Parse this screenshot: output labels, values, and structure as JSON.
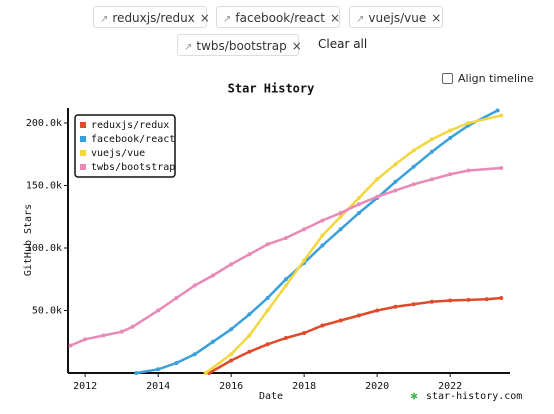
{
  "chips": [
    {
      "label": "reduxjs/redux"
    },
    {
      "label": "facebook/react"
    },
    {
      "label": "vuejs/vue"
    },
    {
      "label": "twbs/bootstrap"
    }
  ],
  "clear_all": "Clear all",
  "align_timeline": "Align timeline",
  "watermark": "star-history.com",
  "chart_data": {
    "type": "line",
    "title": "Star History",
    "x_label": "Date",
    "y_label": "GitHub Stars",
    "xlim": [
      2011.53,
      2023.64
    ],
    "ylim": [
      0,
      212000
    ],
    "xticks": [
      2012,
      2014,
      2016,
      2018,
      2020,
      2022
    ],
    "yticks": [
      {
        "value": 50000,
        "label": "50.0k"
      },
      {
        "value": 100000,
        "label": "100.0k"
      },
      {
        "value": 150000,
        "label": "150.0k"
      },
      {
        "value": 200000,
        "label": "200.0k"
      }
    ],
    "legend": "top-left",
    "series": [
      {
        "name": "reduxjs/redux",
        "color": "#dd4b2a",
        "x": [
          2015.4,
          2016,
          2016.5,
          2017,
          2017.5,
          2018,
          2018.5,
          2019,
          2019.5,
          2020,
          2020.5,
          2021,
          2021.5,
          2022,
          2022.5,
          2023,
          2023.4
        ],
        "values": [
          0,
          10000,
          17000,
          23000,
          28000,
          32000,
          38000,
          42000,
          46000,
          50000,
          53000,
          55000,
          57000,
          58000,
          58500,
          59000,
          60000
        ]
      },
      {
        "name": "facebook/react",
        "color": "#3aa0db",
        "x": [
          2013.4,
          2014,
          2014.5,
          2015,
          2015.5,
          2016,
          2016.5,
          2017,
          2017.5,
          2018,
          2018.5,
          2019,
          2019.5,
          2020,
          2020.5,
          2021,
          2021.5,
          2022,
          2022.5,
          2023.3
        ],
        "values": [
          0,
          3000,
          8000,
          15000,
          25000,
          35000,
          47000,
          60000,
          75000,
          88000,
          102000,
          115000,
          128000,
          140000,
          153000,
          165000,
          177000,
          188000,
          198000,
          210000
        ]
      },
      {
        "name": "vuejs/vue",
        "color": "#f3d640",
        "x": [
          2015.3,
          2016,
          2016.5,
          2017,
          2017.5,
          2018,
          2018.5,
          2019,
          2019.5,
          2020,
          2020.5,
          2021,
          2021.5,
          2022,
          2022.5,
          2023.4
        ],
        "values": [
          0,
          15000,
          30000,
          50000,
          70000,
          90000,
          110000,
          125000,
          140000,
          155000,
          167000,
          178000,
          187000,
          194000,
          200000,
          206000
        ]
      },
      {
        "name": "twbs/bootstrap",
        "color": "#e889b7",
        "x": [
          2011.6,
          2012,
          2012.5,
          2013,
          2013.3,
          2014,
          2014.5,
          2015,
          2015.5,
          2016,
          2016.5,
          2017,
          2017.5,
          2018,
          2018.5,
          2019,
          2019.5,
          2020,
          2020.5,
          2021,
          2021.5,
          2022,
          2022.5,
          2023.4
        ],
        "values": [
          22000,
          27000,
          30000,
          33000,
          37000,
          50000,
          60000,
          70000,
          78000,
          87000,
          95000,
          103000,
          108000,
          115000,
          122000,
          128000,
          135000,
          141000,
          146000,
          151000,
          155000,
          159000,
          162000,
          164000
        ]
      }
    ]
  }
}
